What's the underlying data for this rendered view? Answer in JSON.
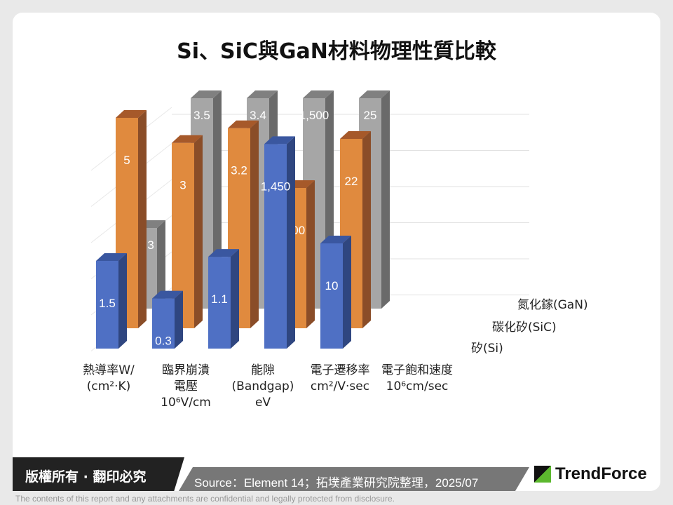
{
  "title": "Si、SiC與GaN材料物理性質比較",
  "chart_data": {
    "type": "bar",
    "subtype": "3d-clustered-column",
    "categories": [
      [
        "熱導率W/",
        "(cm²·K)"
      ],
      [
        "臨界崩潰",
        "電壓",
        "10⁶V/cm"
      ],
      [
        "能隙",
        "(Bandgap)",
        "eV"
      ],
      [
        "電子遷移率",
        "cm²/V·sec"
      ],
      [
        "電子飽和速度",
        "10⁶cm/sec"
      ]
    ],
    "series": [
      {
        "name": "矽(Si)",
        "color": "#4f70c4",
        "labels": [
          "1.5",
          "0.3",
          "1.1",
          "1,450",
          "10"
        ],
        "values": [
          1.5,
          0.3,
          1.1,
          1450,
          10
        ]
      },
      {
        "name": "碳化矽(SiC)",
        "color": "#e08a3e",
        "labels": [
          "5",
          "3",
          "3.2",
          "900",
          "22"
        ],
        "values": [
          5,
          3,
          3.2,
          900,
          22
        ]
      },
      {
        "name": "氮化鎵(GaN)",
        "color": "#a6a6a6",
        "labels": [
          "1.3",
          "3.5",
          "3.4",
          "1,500",
          "25"
        ],
        "values": [
          1.3,
          3.5,
          3.4,
          1500,
          25
        ]
      }
    ],
    "grid": true
  },
  "footer": {
    "copyright": "版權所有 · 翻印必究",
    "source": "Source：Element 14；拓墣產業研究院整理，2025/07",
    "logo": "TrendForce",
    "disclaimer": "The contents of this report and any attachments are confidential and legally protected from disclosure."
  }
}
